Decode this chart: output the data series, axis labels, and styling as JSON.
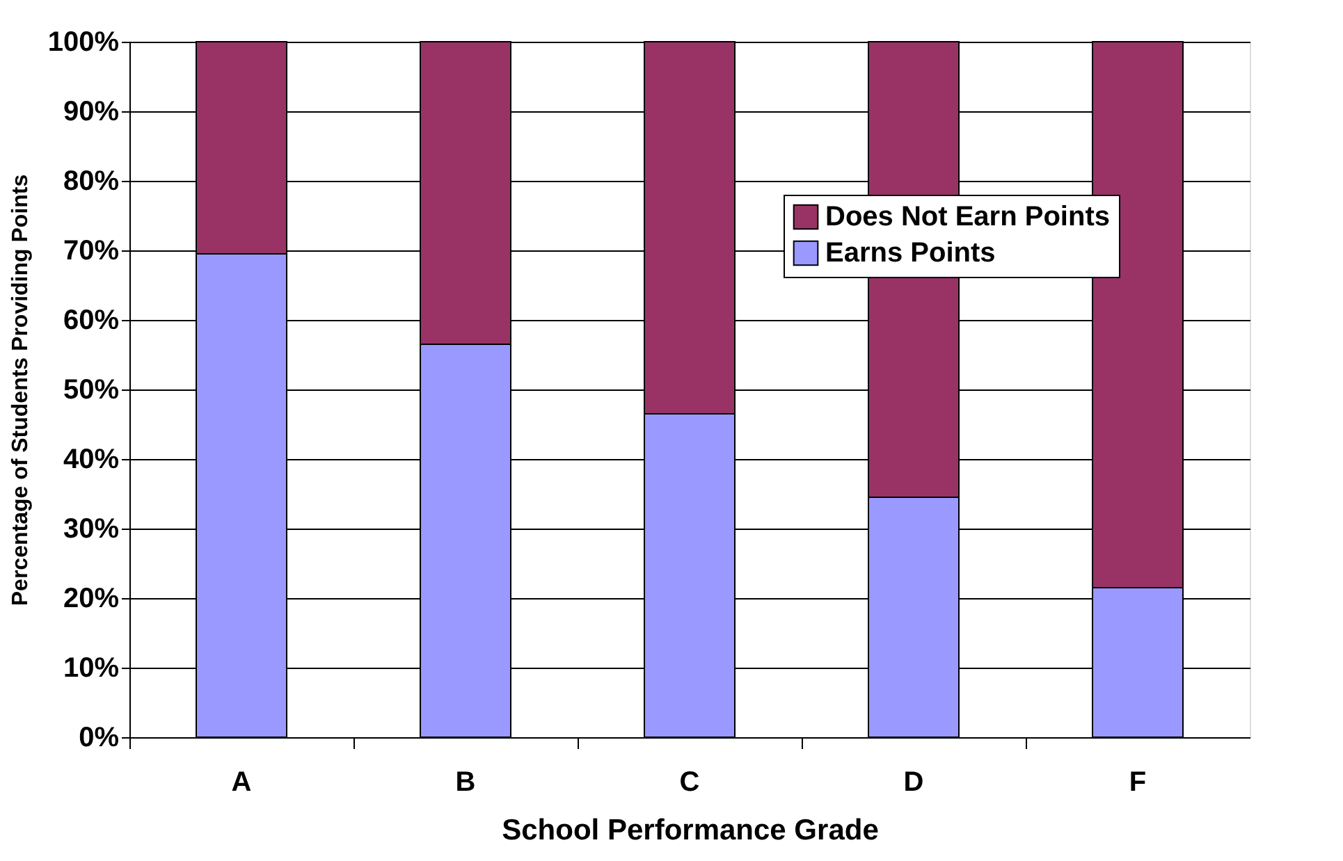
{
  "chart_data": {
    "type": "bar",
    "stacked": true,
    "xlabel": "School Performance Grade",
    "ylabel": "Percentage of Students Providing Points",
    "categories": [
      "A",
      "B",
      "C",
      "D",
      "F"
    ],
    "series": [
      {
        "name": "Earns Points",
        "color": "#9999ff",
        "values": [
          69.5,
          56.5,
          46.5,
          34.5,
          21.5
        ]
      },
      {
        "name": "Does Not Earn Points",
        "color": "#993366",
        "values": [
          30.5,
          43.5,
          53.5,
          65.5,
          78.5
        ]
      }
    ],
    "ylim": [
      0,
      100
    ],
    "yticks": [
      {
        "value": 0,
        "label": "0%"
      },
      {
        "value": 10,
        "label": "10%"
      },
      {
        "value": 20,
        "label": "20%"
      },
      {
        "value": 30,
        "label": "30%"
      },
      {
        "value": 40,
        "label": "40%"
      },
      {
        "value": 50,
        "label": "50%"
      },
      {
        "value": 60,
        "label": "60%"
      },
      {
        "value": 70,
        "label": "70%"
      },
      {
        "value": 80,
        "label": "80%"
      },
      {
        "value": 90,
        "label": "90%"
      },
      {
        "value": 100,
        "label": "100%"
      }
    ],
    "grid": "y",
    "legend": "top right"
  }
}
